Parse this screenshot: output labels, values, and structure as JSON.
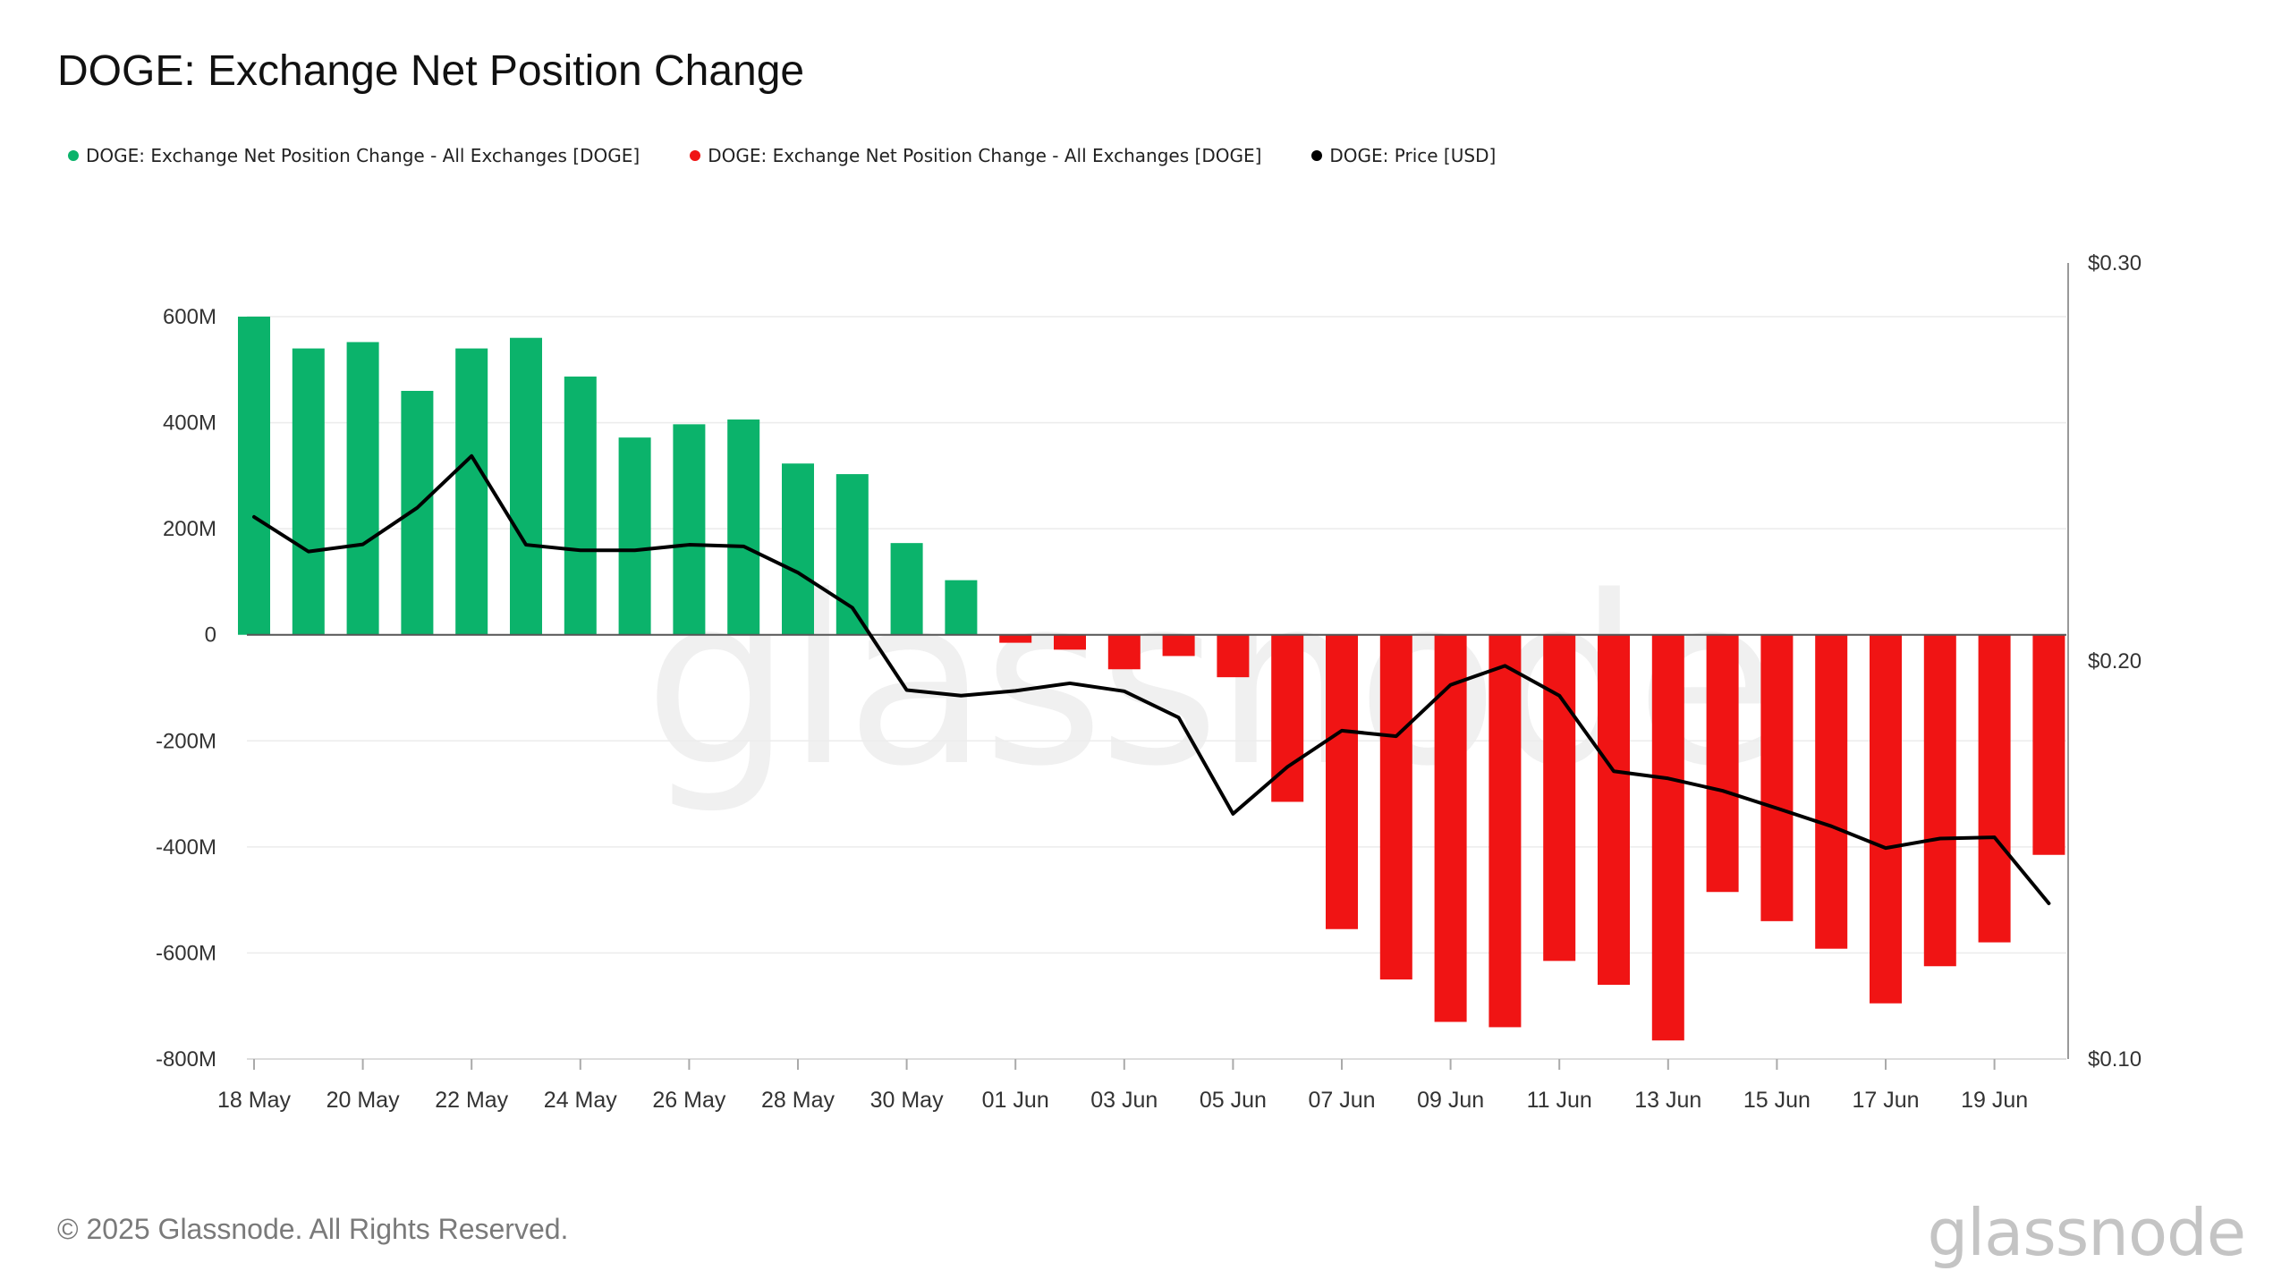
{
  "title": "DOGE: Exchange Net Position Change",
  "legend": [
    {
      "label": "DOGE: Exchange Net Position Change - All Exchanges [DOGE]",
      "color": "#0bb36b"
    },
    {
      "label": "DOGE: Exchange Net Position Change - All Exchanges [DOGE]",
      "color": "#f01414"
    },
    {
      "label": "DOGE: Price [USD]",
      "color": "#000000"
    }
  ],
  "footer": "© 2025 Glassnode. All Rights Reserved.",
  "brand": "glassnode",
  "watermark": "glassnode",
  "chart_data": {
    "type": "bar",
    "categories": [
      "18 May",
      "19 May",
      "20 May",
      "21 May",
      "22 May",
      "23 May",
      "24 May",
      "25 May",
      "26 May",
      "27 May",
      "28 May",
      "29 May",
      "30 May",
      "31 May",
      "01 Jun",
      "02 Jun",
      "03 Jun",
      "04 Jun",
      "05 Jun",
      "06 Jun",
      "07 Jun",
      "08 Jun",
      "09 Jun",
      "10 Jun",
      "11 Jun",
      "12 Jun",
      "13 Jun",
      "14 Jun",
      "15 Jun",
      "16 Jun",
      "17 Jun",
      "18 Jun",
      "19 Jun",
      "20 Jun"
    ],
    "x_tick_labels": [
      "18 May",
      "20 May",
      "22 May",
      "24 May",
      "26 May",
      "28 May",
      "30 May",
      "01 Jun",
      "03 Jun",
      "05 Jun",
      "07 Jun",
      "09 Jun",
      "11 Jun",
      "13 Jun",
      "15 Jun",
      "17 Jun",
      "19 Jun"
    ],
    "series": [
      {
        "name": "DOGE: Exchange Net Position Change - All Exchanges [DOGE]",
        "axis": "left",
        "unit": "M",
        "positive_color": "#0bb36b",
        "negative_color": "#f01414",
        "values": [
          600,
          540,
          552,
          460,
          540,
          560,
          487,
          372,
          397,
          406,
          323,
          303,
          173,
          103,
          -15,
          -28,
          -65,
          -40,
          -80,
          -315,
          -555,
          -650,
          -730,
          -740,
          -615,
          -660,
          -765,
          -485,
          -540,
          -592,
          -695,
          -625,
          -580,
          -415
        ]
      },
      {
        "name": "DOGE: Price [USD]",
        "axis": "right",
        "color": "#000000",
        "values": [
          0.2362,
          0.2275,
          0.2293,
          0.2385,
          0.2515,
          0.2292,
          0.2278,
          0.2278,
          0.2292,
          0.2288,
          0.2222,
          0.2134,
          0.1927,
          0.1913,
          0.1925,
          0.1944,
          0.1924,
          0.1858,
          0.1616,
          0.1734,
          0.1825,
          0.1811,
          0.194,
          0.1988,
          0.1913,
          0.1723,
          0.1705,
          0.1674,
          0.163,
          0.1585,
          0.153,
          0.1554,
          0.1557,
          0.1391
        ]
      }
    ],
    "left_axis": {
      "min": -800,
      "max": 600,
      "ticks": [
        600,
        400,
        200,
        0,
        -200,
        -400,
        -600,
        -800
      ],
      "tick_labels": [
        "600M",
        "400M",
        "200M",
        "0",
        "-200M",
        "-400M",
        "-600M",
        "-800M"
      ]
    },
    "right_axis": {
      "tick_labels": [
        "$0.30",
        "$0.20",
        "$0.10"
      ],
      "tick_values": [
        0.3,
        0.2,
        0.1
      ]
    },
    "grid": true,
    "legend_position": "top-left"
  }
}
